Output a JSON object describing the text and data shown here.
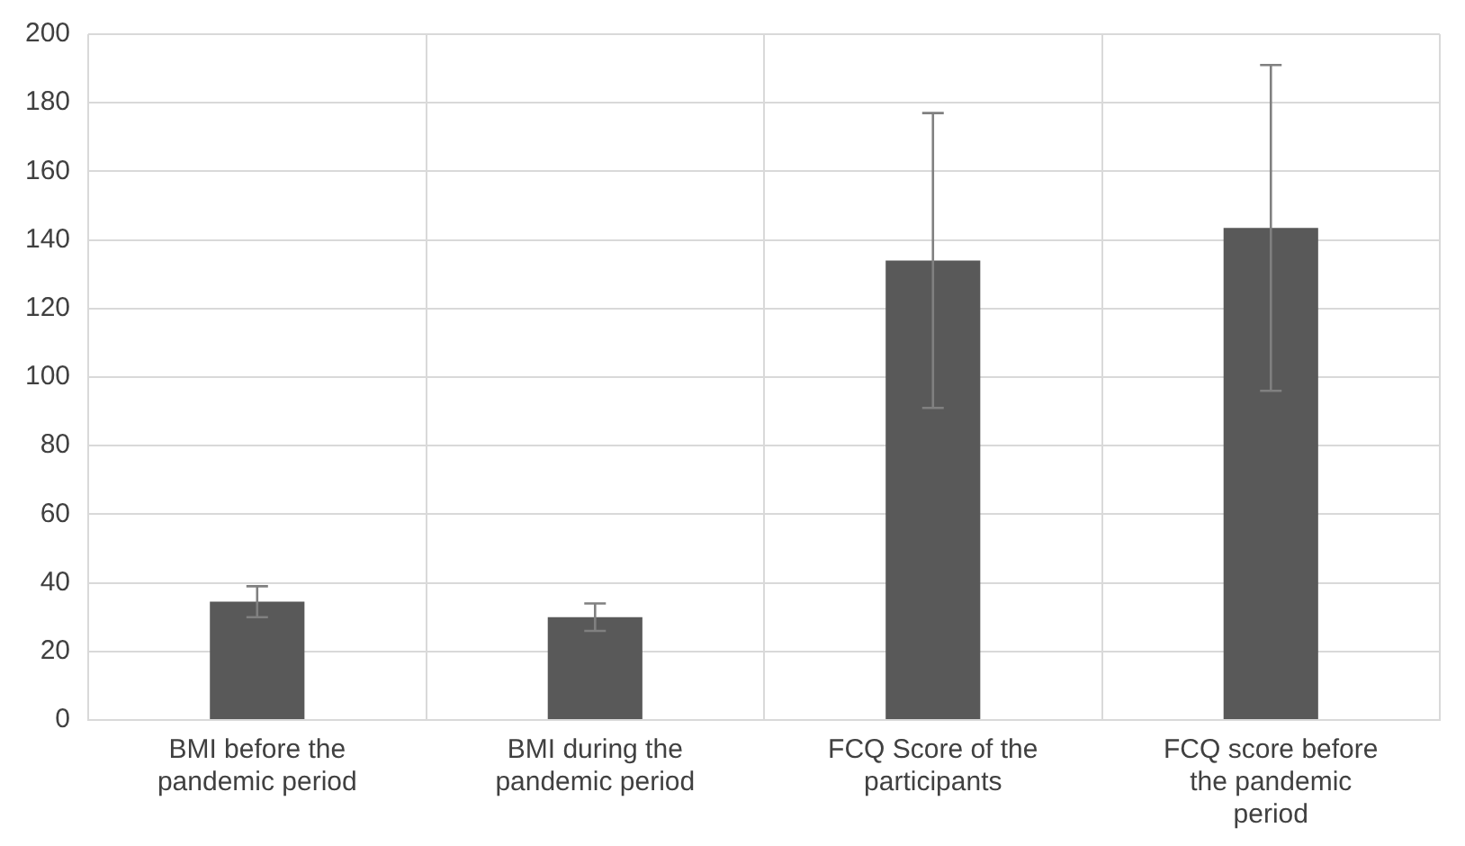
{
  "chart_data": {
    "type": "bar",
    "categories": [
      "BMI before the pandemic period",
      "BMI during the pandemic period",
      "FCQ Score of the participants",
      "FCQ score before the pandemic period"
    ],
    "values": [
      34.5,
      30,
      134,
      143.5
    ],
    "errors": [
      4.5,
      4,
      43,
      47.5
    ],
    "color": "#595959",
    "ylim": [
      0,
      200
    ],
    "yticks": [
      0,
      20,
      40,
      60,
      80,
      100,
      120,
      140,
      160,
      180,
      200
    ],
    "grid": true
  }
}
